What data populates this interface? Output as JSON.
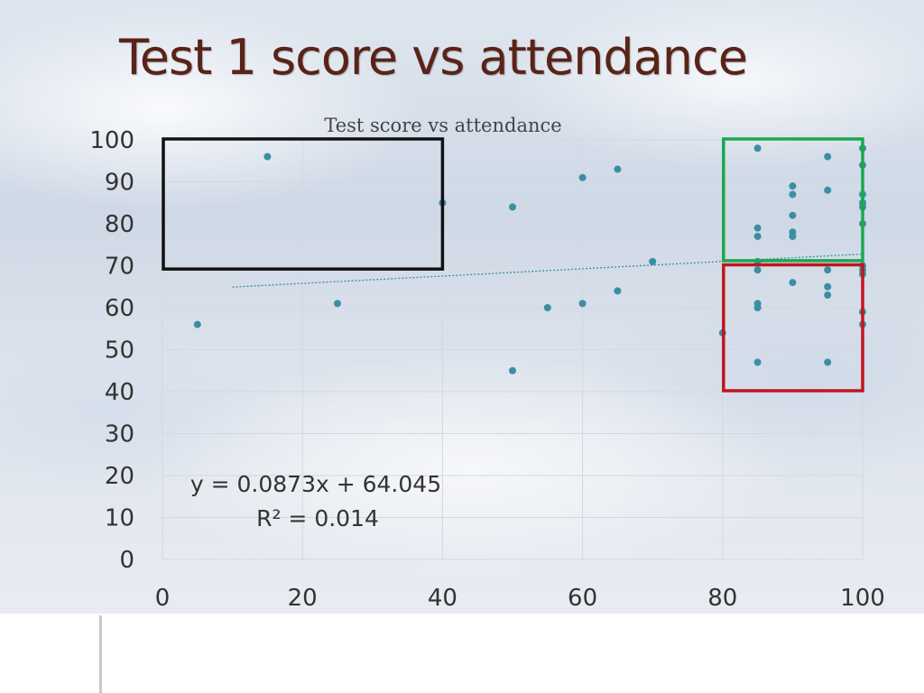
{
  "slide": {
    "title": "Test 1 score vs attendance"
  },
  "chart_data": {
    "type": "scatter",
    "title": "Test score vs attendance",
    "xlabel": "",
    "ylabel": "",
    "xlim": [
      0,
      100
    ],
    "ylim": [
      0,
      100
    ],
    "x_ticks": [
      0,
      20,
      40,
      60,
      80,
      100
    ],
    "y_ticks": [
      0,
      10,
      20,
      30,
      40,
      50,
      60,
      70,
      80,
      90,
      100
    ],
    "grid": true,
    "marker_color": "#3a8fa3",
    "points": [
      [
        5,
        56
      ],
      [
        15,
        96
      ],
      [
        25,
        61
      ],
      [
        40,
        85
      ],
      [
        50,
        84
      ],
      [
        50,
        45
      ],
      [
        55,
        60
      ],
      [
        60,
        91
      ],
      [
        60,
        61
      ],
      [
        65,
        93
      ],
      [
        65,
        64
      ],
      [
        70,
        71
      ],
      [
        80,
        54
      ],
      [
        85,
        98
      ],
      [
        85,
        79
      ],
      [
        85,
        77
      ],
      [
        85,
        71
      ],
      [
        85,
        69
      ],
      [
        85,
        61
      ],
      [
        85,
        60
      ],
      [
        85,
        47
      ],
      [
        90,
        89
      ],
      [
        90,
        87
      ],
      [
        90,
        82
      ],
      [
        90,
        78
      ],
      [
        90,
        77
      ],
      [
        90,
        66
      ],
      [
        95,
        96
      ],
      [
        95,
        88
      ],
      [
        95,
        69
      ],
      [
        95,
        65
      ],
      [
        95,
        63
      ],
      [
        95,
        47
      ],
      [
        100,
        98
      ],
      [
        100,
        94
      ],
      [
        100,
        87
      ],
      [
        100,
        85
      ],
      [
        100,
        84
      ],
      [
        100,
        80
      ],
      [
        100,
        70
      ],
      [
        100,
        69
      ],
      [
        100,
        68
      ],
      [
        100,
        59
      ],
      [
        100,
        56
      ]
    ],
    "trendline": {
      "slope": 0.0873,
      "intercept": 64.045,
      "x_range": [
        10,
        100
      ],
      "style": "dotted",
      "color": "#3a8fa3"
    },
    "annotation": {
      "equation": "y = 0.0873x + 64.045",
      "r_squared": "R² = 0.014"
    },
    "highlight_boxes": [
      {
        "name": "black-highlight-box",
        "color": "#111111",
        "x_range": [
          0,
          40
        ],
        "y_range": [
          69,
          100
        ]
      },
      {
        "name": "green-highlight-box",
        "color": "#1aa84f",
        "x_range": [
          80,
          100
        ],
        "y_range": [
          71,
          100
        ]
      },
      {
        "name": "red-highlight-box",
        "color": "#c0161e",
        "x_range": [
          80,
          100
        ],
        "y_range": [
          40,
          70
        ]
      }
    ]
  }
}
